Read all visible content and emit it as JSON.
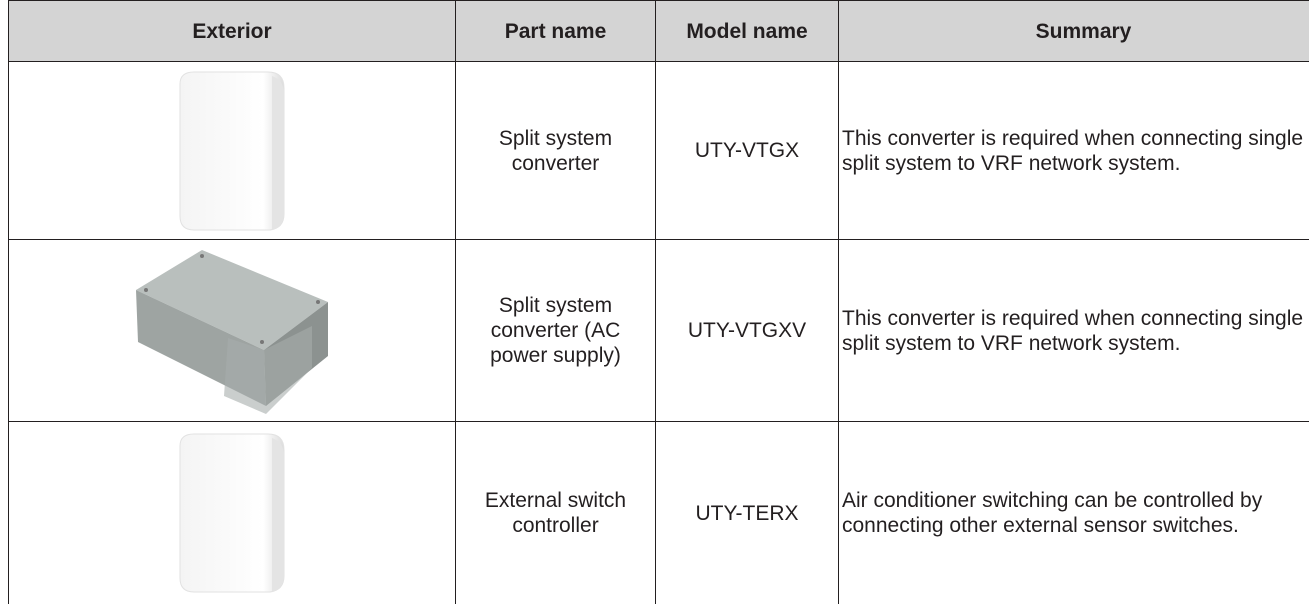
{
  "table": {
    "headers": [
      "Exterior",
      "Part name",
      "Model name",
      "Summary"
    ],
    "rows": [
      {
        "part_name": "Split system converter",
        "model_name": "UTY-VTGX",
        "summary": "This converter is required when connecting single split system to VRF network system."
      },
      {
        "part_name": "Split system converter (AC power supply)",
        "model_name": "UTY-VTGXV",
        "summary": "This converter is required when connecting single split system to VRF network system."
      },
      {
        "part_name": "External switch controller",
        "model_name": "UTY-TERX",
        "summary": "Air conditioner switching can be controlled by connecting other external sensor switches."
      }
    ]
  }
}
